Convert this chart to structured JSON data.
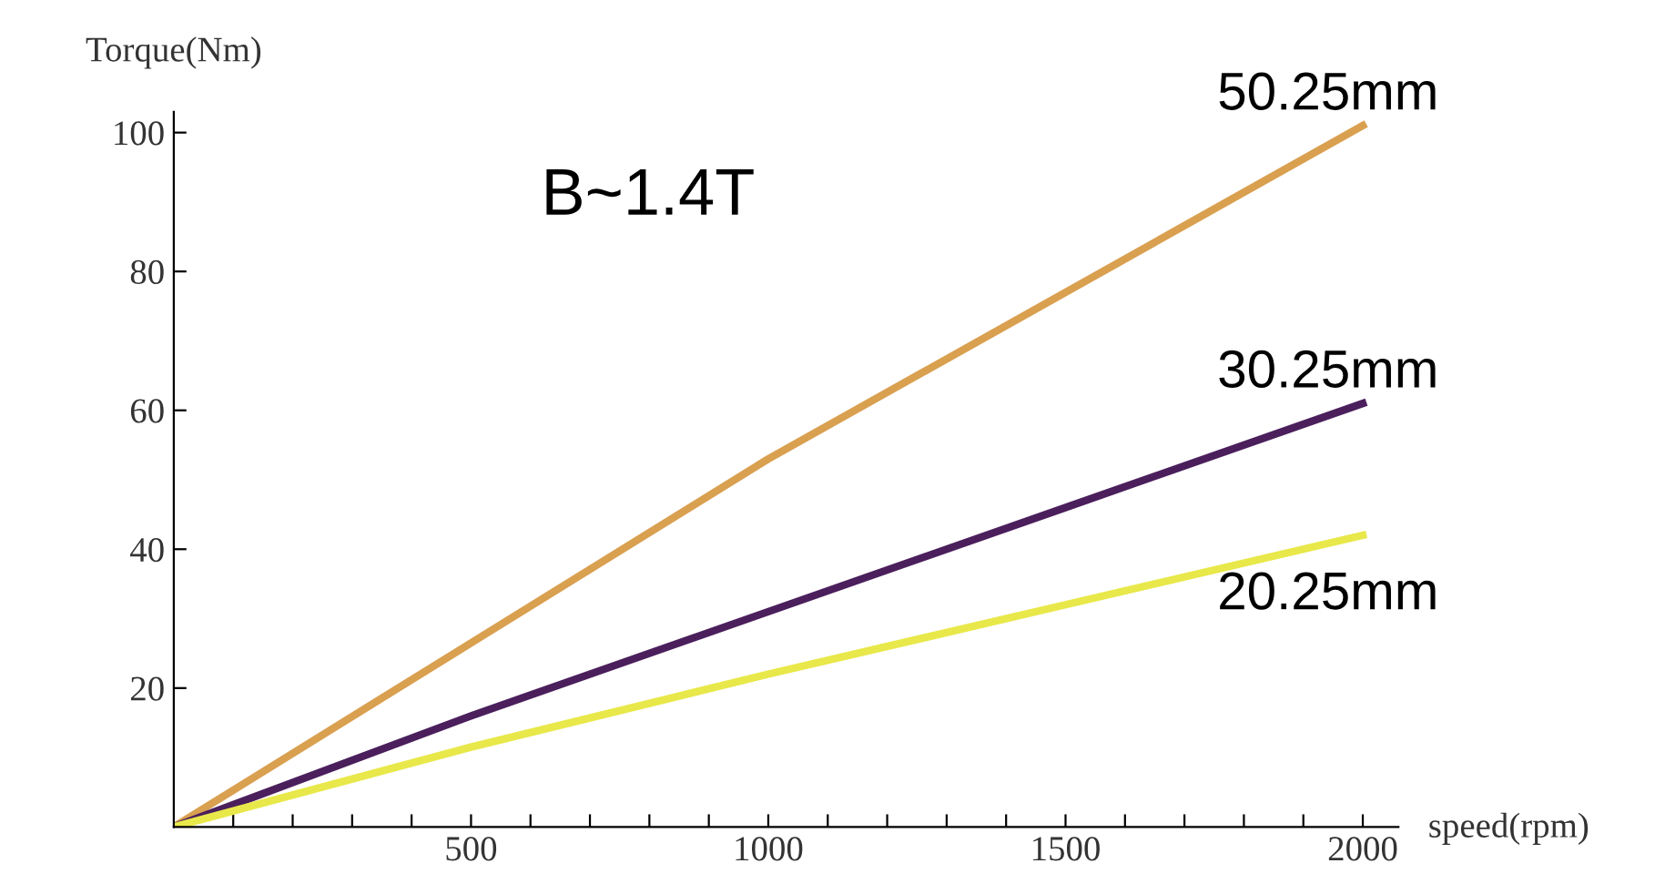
{
  "chart_data": {
    "type": "line",
    "xlabel": "speed(rpm)",
    "ylabel": "Torque(Nm)",
    "annotations": [
      "B~1.4T"
    ],
    "x": [
      0,
      500,
      1000,
      1500,
      2000
    ],
    "series": [
      {
        "name": "50.25mm",
        "color": "#d9a050",
        "values": [
          0,
          26.5,
          53,
          77,
          101
        ]
      },
      {
        "name": "30.25mm",
        "color": "#4b1f5c",
        "values": [
          0,
          16,
          31,
          46,
          61
        ]
      },
      {
        "name": "20.25mm",
        "color": "#e8e84a",
        "values": [
          0,
          11.5,
          22,
          32,
          42
        ]
      }
    ],
    "xlim": [
      0,
      2060
    ],
    "ylim": [
      0,
      103
    ],
    "xticks": [
      {
        "value": 100,
        "label": null
      },
      {
        "value": 200,
        "label": null
      },
      {
        "value": 300,
        "label": null
      },
      {
        "value": 400,
        "label": null
      },
      500,
      {
        "value": 600,
        "label": null
      },
      {
        "value": 700,
        "label": null
      },
      {
        "value": 800,
        "label": null
      },
      {
        "value": 900,
        "label": null
      },
      1000,
      {
        "value": 1100,
        "label": null
      },
      {
        "value": 1200,
        "label": null
      },
      {
        "value": 1300,
        "label": null
      },
      {
        "value": 1400,
        "label": null
      },
      1500,
      {
        "value": 1600,
        "label": null
      },
      {
        "value": 1700,
        "label": null
      },
      {
        "value": 1800,
        "label": null
      },
      {
        "value": 1900,
        "label": null
      },
      2000
    ],
    "yticks": [
      20,
      40,
      60,
      80,
      100
    ],
    "grid": false,
    "legend": false
  }
}
